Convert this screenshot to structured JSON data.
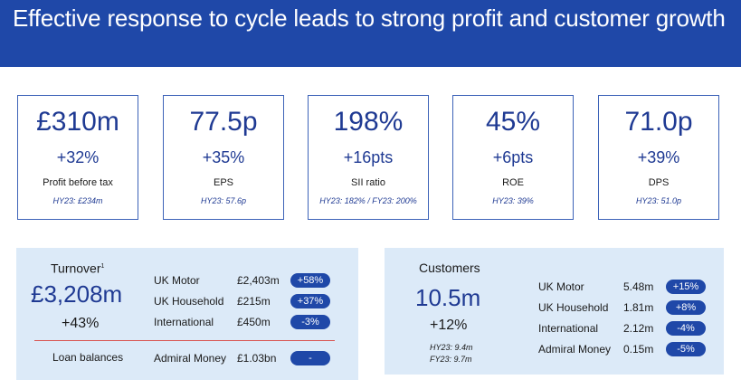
{
  "header": {
    "title": "Effective response to cycle leads to strong profit and customer growth"
  },
  "kpis": [
    {
      "value": "£310m",
      "change": "+32%",
      "label": "Profit before tax",
      "note": "HY23: £234m"
    },
    {
      "value": "77.5p",
      "change": "+35%",
      "label": "EPS",
      "note": "HY23: 57.6p"
    },
    {
      "value": "198%",
      "change": "+16pts",
      "label": "SII ratio",
      "note": "HY23: 182% / FY23: 200%"
    },
    {
      "value": "45%",
      "change": "+6pts",
      "label": "ROE",
      "note": "HY23: 39%"
    },
    {
      "value": "71.0p",
      "change": "+39%",
      "label": "DPS",
      "note": "HY23: 51.0p"
    }
  ],
  "turnover": {
    "title": "Turnover",
    "footnote": "1",
    "total": "£3,208m",
    "change": "+43%",
    "rows": [
      {
        "label": "UK Motor",
        "value": "£2,403m",
        "change": "+58%"
      },
      {
        "label": "UK Household",
        "value": "£215m",
        "change": "+37%"
      },
      {
        "label": "International",
        "value": "£450m",
        "change": "-3%"
      }
    ],
    "loan": {
      "title": "Loan balances",
      "label": "Admiral Money",
      "value": "£1.03bn",
      "change": "-"
    }
  },
  "customers": {
    "title": "Customers",
    "total": "10.5m",
    "change": "+12%",
    "note_hy": "HY23: 9.4m",
    "note_fy": "FY23: 9.7m",
    "rows": [
      {
        "label": "UK Motor",
        "value": "5.48m",
        "change": "+15%"
      },
      {
        "label": "UK Household",
        "value": "1.81m",
        "change": "+8%"
      },
      {
        "label": "International",
        "value": "2.12m",
        "change": "-4%"
      },
      {
        "label": "Admiral Money",
        "value": "0.15m",
        "change": "-5%"
      }
    ]
  },
  "colors": {
    "brand": "#1f48a8",
    "panel": "#dceaf8",
    "divider": "#d9534f"
  }
}
